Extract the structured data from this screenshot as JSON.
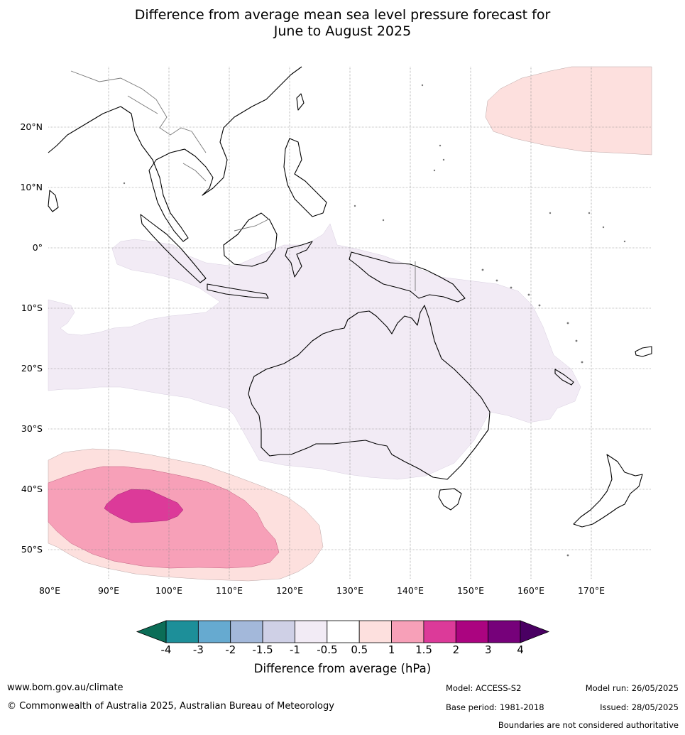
{
  "title": {
    "line1": "Difference from average mean sea level pressure forecast for",
    "line2": "June to August 2025"
  },
  "map": {
    "lat_labels": [
      "20°N",
      "10°N",
      "0°",
      "10°S",
      "20°S",
      "30°S",
      "40°S",
      "50°S"
    ],
    "lon_labels": [
      "80°E",
      "90°E",
      "100°E",
      "110°E",
      "120°E",
      "130°E",
      "140°E",
      "150°E",
      "160°E",
      "170°E"
    ],
    "extent": {
      "lon": [
        80,
        180
      ],
      "lat": [
        -55,
        30
      ]
    },
    "regions": [
      {
        "name": "north-pacific-anomaly",
        "category": "0.5 to 1"
      },
      {
        "name": "indonesia-australia-anomaly",
        "category": "-1 to -0.5"
      },
      {
        "name": "southern-ocean-anomaly-outer",
        "category": "0.5 to 1"
      },
      {
        "name": "southern-ocean-anomaly-middle",
        "category": "1 to 1.5"
      },
      {
        "name": "southern-ocean-anomaly-core",
        "category": "1.5 to 2"
      }
    ]
  },
  "colorbar": {
    "ticks": [
      "-4",
      "-3",
      "-2",
      "-1.5",
      "-1",
      "-0.5",
      "0.5",
      "1",
      "1.5",
      "2",
      "3",
      "4"
    ],
    "colors": [
      "#1d8f99",
      "#66aad0",
      "#a3b8da",
      "#cfd0e6",
      "#f2ebf5",
      "#ffffff",
      "#fde0de",
      "#f7a0b8",
      "#dc3a99",
      "#ab0480",
      "#76017a"
    ],
    "under_color": "#0b6d57",
    "over_color": "#4a0063",
    "label": "Difference from average (hPa)"
  },
  "footer": {
    "website": "www.bom.gov.au/climate",
    "copyright": "© Commonwealth of Australia 2025, Australian Bureau of Meteorology",
    "model": "Model: ACCESS-S2",
    "base_period": "Base period: 1981-2018",
    "model_run": "Model run: 26/05/2025",
    "issued": "Issued: 28/05/2025",
    "disclaimer": "Boundaries are not considered authoritative"
  }
}
